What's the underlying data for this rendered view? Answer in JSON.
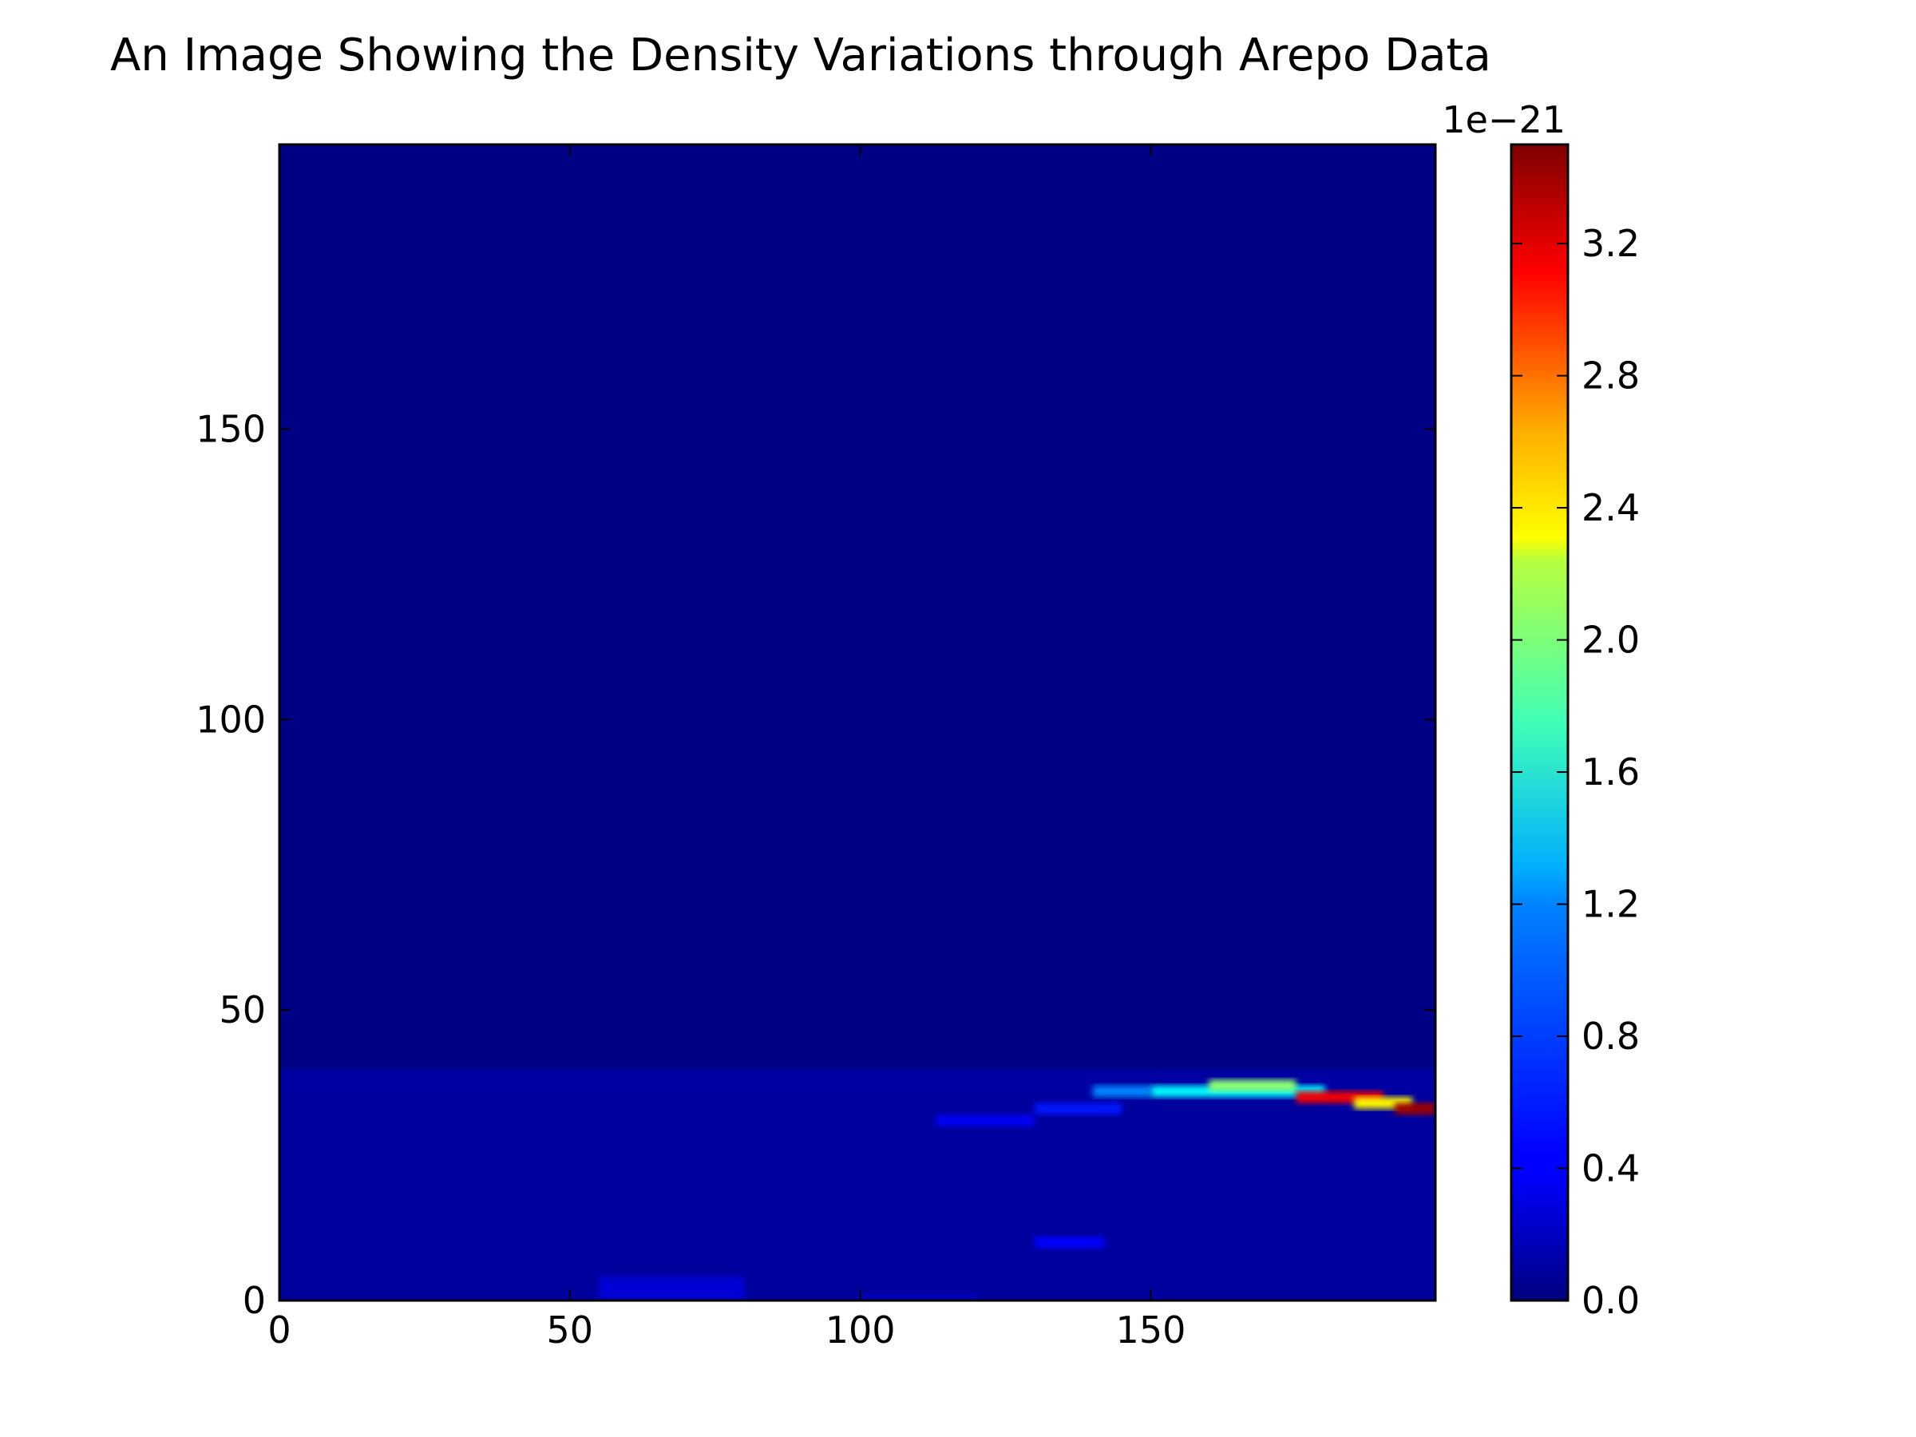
{
  "chart_data": {
    "type": "heatmap",
    "title": "An Image Showing the Density Variations through Arepo Data",
    "xlabel": "",
    "ylabel": "",
    "xlim": [
      0,
      199
    ],
    "ylim": [
      0,
      199
    ],
    "x_ticks": [
      0,
      50,
      100,
      150
    ],
    "x_tick_labels": [
      "0",
      "50",
      "100",
      "150"
    ],
    "y_ticks": [
      0,
      50,
      100,
      150
    ],
    "y_tick_labels": [
      "0",
      "50",
      "100",
      "150"
    ],
    "grid": false,
    "colormap": "jet",
    "colorbar": {
      "min": 0.0,
      "max": 3.5,
      "ticks": [
        0.0,
        0.4,
        0.8,
        1.2,
        1.6,
        2.0,
        2.4,
        2.8,
        3.2
      ],
      "tick_labels": [
        "0.0",
        "0.4",
        "0.8",
        "1.2",
        "1.6",
        "2.0",
        "2.4",
        "2.8",
        "3.2"
      ],
      "offset_label": "1e−21",
      "position": "right"
    },
    "background_value": 0.02,
    "density_features": [
      {
        "x_range": [
          0,
          199
        ],
        "y_range": [
          0,
          40
        ],
        "value": 0.1
      },
      {
        "x_range": [
          0,
          199
        ],
        "y_range": [
          36,
          39
        ],
        "value": 0.12
      },
      {
        "x_range": [
          55,
          80
        ],
        "y_range": [
          0,
          4
        ],
        "value": 0.3
      },
      {
        "x_range": [
          100,
          120
        ],
        "y_range": [
          0,
          1
        ],
        "value": 0.25
      },
      {
        "x_range": [
          130,
          142
        ],
        "y_range": [
          9,
          11
        ],
        "value": 0.45
      },
      {
        "x_range": [
          113,
          130
        ],
        "y_range": [
          30,
          32
        ],
        "value": 0.4
      },
      {
        "x_range": [
          130,
          145
        ],
        "y_range": [
          32,
          34
        ],
        "value": 0.5
      },
      {
        "x_range": [
          140,
          150
        ],
        "y_range": [
          35,
          37
        ],
        "value": 0.9
      },
      {
        "x_range": [
          150,
          180
        ],
        "y_range": [
          35,
          37
        ],
        "value": 1.3
      },
      {
        "x_range": [
          160,
          175
        ],
        "y_range": [
          36,
          38
        ],
        "value": 1.8
      },
      {
        "x_range": [
          175,
          190
        ],
        "y_range": [
          34,
          36
        ],
        "value": 3.1
      },
      {
        "x_range": [
          185,
          195
        ],
        "y_range": [
          33,
          35
        ],
        "value": 2.2
      },
      {
        "x_range": [
          192,
          199
        ],
        "y_range": [
          32,
          34
        ],
        "value": 3.4
      }
    ]
  }
}
